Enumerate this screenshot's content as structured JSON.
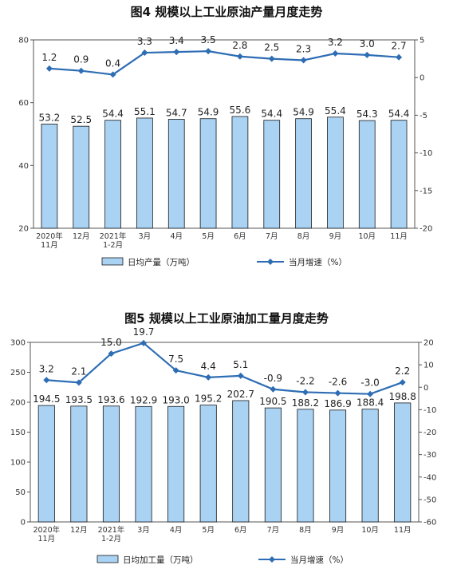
{
  "chart_data": [
    {
      "type": "bar+line",
      "title": "图4  规模以上工业原油产量月度走势",
      "categories": [
        "2020年\n11月",
        "12月",
        "2021年\n1-2月",
        "3月",
        "4月",
        "5月",
        "6月",
        "7月",
        "8月",
        "9月",
        "10月",
        "11月"
      ],
      "bar_series": {
        "name": "日均产量（万吨）",
        "values": [
          53.2,
          52.5,
          54.4,
          55.1,
          54.7,
          54.9,
          55.6,
          54.4,
          54.9,
          55.4,
          54.3,
          54.4
        ]
      },
      "line_series": {
        "name": "当月增速（%）",
        "values": [
          1.2,
          0.9,
          0.4,
          3.3,
          3.4,
          3.5,
          2.8,
          2.5,
          2.3,
          3.2,
          3.0,
          2.7
        ]
      },
      "y_left": {
        "min": 20,
        "max": 80,
        "ticks": [
          20,
          40,
          60,
          80
        ]
      },
      "y_right": {
        "min": -20,
        "max": 5,
        "ticks": [
          5,
          0,
          -5,
          -10,
          -15,
          -20
        ]
      },
      "legend_position": "bottom",
      "colors": {
        "bar_fill": "#a9d2f3",
        "bar_edge": "#1a1a1a",
        "line": "#2e6db4"
      }
    },
    {
      "type": "bar+line",
      "title": "图5  规模以上工业原油加工量月度走势",
      "categories": [
        "2020年\n11月",
        "12月",
        "2021年\n1-2月",
        "3月",
        "4月",
        "5月",
        "6月",
        "7月",
        "8月",
        "9月",
        "10月",
        "11月"
      ],
      "bar_series": {
        "name": "日均加工量（万吨）",
        "values": [
          194.5,
          193.5,
          193.6,
          192.9,
          193.0,
          195.2,
          202.7,
          190.5,
          188.2,
          186.9,
          188.4,
          198.8
        ]
      },
      "line_series": {
        "name": "当月增速（%）",
        "values": [
          3.2,
          2.1,
          15.0,
          19.7,
          7.5,
          4.4,
          5.1,
          -0.9,
          -2.2,
          -2.6,
          -3.0,
          2.2
        ]
      },
      "y_left": {
        "min": 0,
        "max": 300,
        "ticks": [
          0,
          50,
          100,
          150,
          200,
          250,
          300
        ]
      },
      "y_right": {
        "min": -60,
        "max": 20,
        "ticks": [
          20,
          10,
          0,
          -10,
          -20,
          -30,
          -40,
          -50,
          -60
        ]
      },
      "legend_position": "bottom",
      "colors": {
        "bar_fill": "#a9d2f3",
        "bar_edge": "#1a1a1a",
        "line": "#2e6db4"
      }
    }
  ]
}
